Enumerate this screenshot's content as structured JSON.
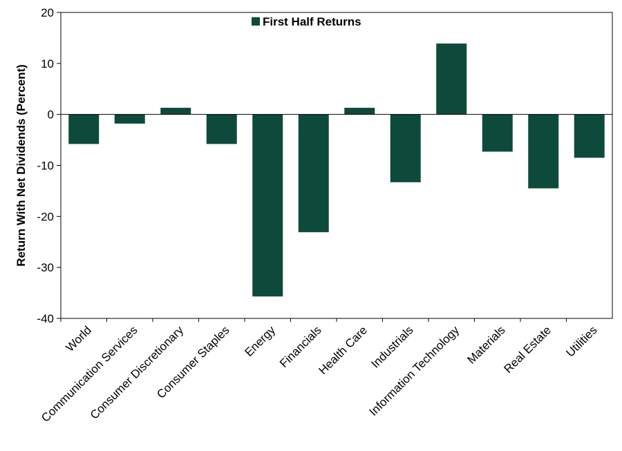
{
  "chart_data": {
    "type": "bar",
    "categories": [
      "World",
      "Communication Services",
      "Consumer Discretionary",
      "Consumer Staples",
      "Energy",
      "Financials",
      "Health Care",
      "Industrials",
      "Information Technology",
      "Materials",
      "Real Estate",
      "Utilities"
    ],
    "series": [
      {
        "name": "First Half Returns",
        "values": [
          -5.8,
          -1.8,
          1.3,
          -5.8,
          -35.7,
          -23.1,
          1.3,
          -13.3,
          13.9,
          -7.3,
          -14.5,
          -8.5
        ],
        "color": "#0e4a3c"
      }
    ],
    "title": "",
    "xlabel": "",
    "ylabel": "Return With Net Dividends (Percent)",
    "ylim": [
      -40,
      20
    ],
    "yticks": [
      20,
      10,
      0,
      -10,
      -20,
      -30,
      -40
    ],
    "grid": false,
    "legend_position": "top"
  }
}
